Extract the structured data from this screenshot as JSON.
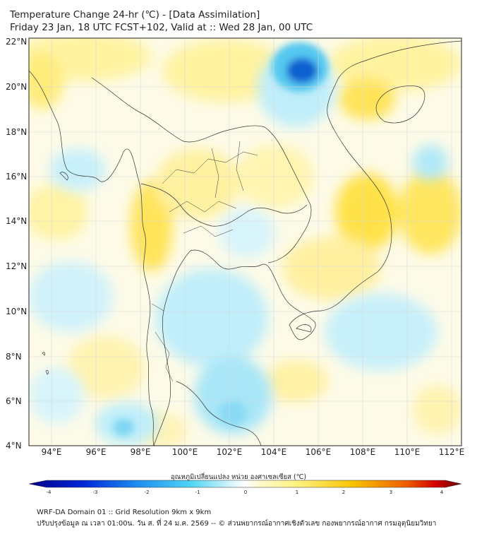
{
  "header": {
    "title": "Temperature Change 24-hr (℃) - [Data Assimilation]",
    "subtitle": "Friday 23 Jan, 18 UTC FCST+102, Valid at :: Wed 28 Jan, 00 UTC"
  },
  "map": {
    "lat_labels": [
      "22°N",
      "20°N",
      "18°N",
      "16°N",
      "14°N",
      "12°N",
      "10°N",
      "8°N",
      "6°N",
      "4°N"
    ],
    "lon_labels": [
      "94°E",
      "96°E",
      "98°E",
      "100°E",
      "102°E",
      "104°E",
      "106°E",
      "108°E",
      "110°E",
      "112°E"
    ],
    "lat_range": [
      4,
      22
    ],
    "lon_range": [
      93,
      112.5
    ],
    "colors": {
      "strong_warm": "#f2d700",
      "warm": "#fff3a0",
      "neutral": "#ffffff",
      "cool": "#c8f0fa",
      "cold": "#55c8f0",
      "strong_cold": "#1060d0"
    }
  },
  "colorbar": {
    "title": "อุณหภูมิเปลี่ยนแปลง หน่วย องศาเซลเซียส (℃)",
    "ticks": [
      "-4",
      "-3",
      "-2",
      "-1",
      "0",
      "1",
      "2",
      "3",
      "4"
    ]
  },
  "footer": {
    "line1": "WRF-DA Domain 01 :: Grid Resolution 9km x 9km",
    "line2": "ปรับปรุงข้อมูล ณ เวลา 01:00น. วัน ส. ที่ 24 ม.ค. 2569 -- © ส่วนพยากรณ์อากาศเชิงตัวเลข กองพยากรณ์อากาศ กรมอุตุนิยมวิทยา"
  }
}
